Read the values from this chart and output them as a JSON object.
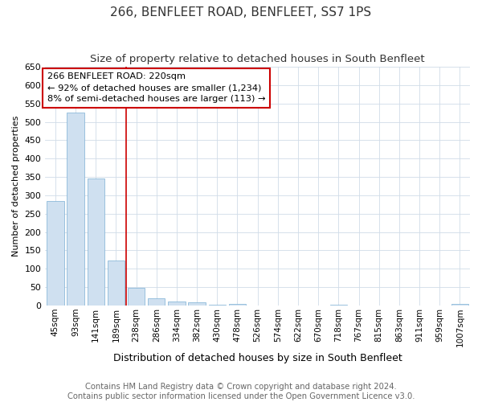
{
  "title": "266, BENFLEET ROAD, BENFLEET, SS7 1PS",
  "subtitle": "Size of property relative to detached houses in South Benfleet",
  "xlabel": "Distribution of detached houses by size in South Benfleet",
  "ylabel": "Number of detached properties",
  "bar_color": "#cfe0f0",
  "bar_edge_color": "#7bafd4",
  "categories": [
    "45sqm",
    "93sqm",
    "141sqm",
    "189sqm",
    "238sqm",
    "286sqm",
    "334sqm",
    "382sqm",
    "430sqm",
    "478sqm",
    "526sqm",
    "574sqm",
    "622sqm",
    "670sqm",
    "718sqm",
    "767sqm",
    "815sqm",
    "863sqm",
    "911sqm",
    "959sqm",
    "1007sqm"
  ],
  "values": [
    285,
    525,
    345,
    122,
    48,
    20,
    10,
    8,
    2,
    5,
    0,
    0,
    0,
    0,
    2,
    0,
    0,
    0,
    0,
    0,
    5
  ],
  "ylim": [
    0,
    650
  ],
  "yticks": [
    0,
    50,
    100,
    150,
    200,
    250,
    300,
    350,
    400,
    450,
    500,
    550,
    600,
    650
  ],
  "red_line_x": 3.5,
  "annotation_text": "266 BENFLEET ROAD: 220sqm\n← 92% of detached houses are smaller (1,234)\n8% of semi-detached houses are larger (113) →",
  "annotation_box_color": "#ffffff",
  "annotation_box_edge": "#cc0000",
  "footer_line1": "Contains HM Land Registry data © Crown copyright and database right 2024.",
  "footer_line2": "Contains public sector information licensed under the Open Government Licence v3.0.",
  "background_color": "#ffffff",
  "grid_color": "#d0dce8",
  "title_fontsize": 11,
  "subtitle_fontsize": 9.5,
  "footer_fontsize": 7.2,
  "ylabel_fontsize": 8,
  "xlabel_fontsize": 9,
  "tick_fontsize": 7.5
}
